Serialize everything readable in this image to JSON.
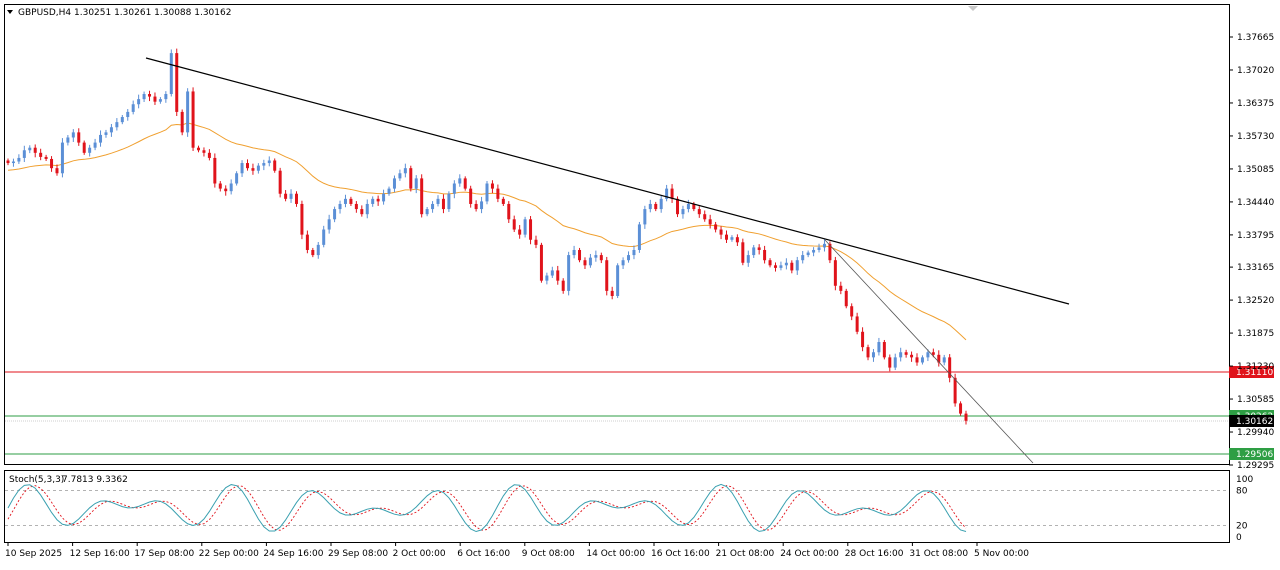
{
  "header": {
    "symbol": "GBPUSD,H4",
    "ohlc": "1.30251 1.30261 1.30088 1.30162"
  },
  "stoch_header": {
    "label": "Stoch(5,3,3)",
    "values": "7.7813 9.3362"
  },
  "colors": {
    "bull": "#5b8fd6",
    "bear": "#e0131b",
    "ma": "#f0a030",
    "trendline": "#000000",
    "stoch_main": "#3aa0b0",
    "stoch_signal": "#e0131b",
    "level_red": "#e0131b",
    "level_green": "#2e9e44"
  },
  "chart_data": [
    {
      "type": "candlestick",
      "symbol": "GBPUSD",
      "timeframe": "H4",
      "ylim": [
        1.2926,
        1.38
      ],
      "y_ticks": [
        "1.37665",
        "1.37020",
        "1.36375",
        "1.35730",
        "1.35085",
        "1.34440",
        "1.33795",
        "1.33165",
        "1.32520",
        "1.31875",
        "1.31230",
        "1.30585",
        "1.29940",
        "1.29295"
      ],
      "x_labels": [
        "10 Sep 2025",
        "12 Sep 16:00",
        "17 Sep 08:00",
        "22 Sep 00:00",
        "24 Sep 16:00",
        "29 Sep 08:00",
        "2 Oct 00:00",
        "6 Oct 16:00",
        "9 Oct 08:00",
        "14 Oct 00:00",
        "16 Oct 16:00",
        "21 Oct 08:00",
        "24 Oct 00:00",
        "28 Oct 16:00",
        "31 Oct 08:00",
        "5 Nov 00:00"
      ],
      "closes": [
        1.352,
        1.3523,
        1.353,
        1.3545,
        1.355,
        1.354,
        1.3532,
        1.3528,
        1.351,
        1.35,
        1.356,
        1.357,
        1.358,
        1.356,
        1.354,
        1.355,
        1.356,
        1.3575,
        1.358,
        1.359,
        1.36,
        1.361,
        1.362,
        1.3635,
        1.3645,
        1.3655,
        1.365,
        1.364,
        1.3645,
        1.3655,
        1.3735,
        1.362,
        1.358,
        1.366,
        1.355,
        1.3545,
        1.354,
        1.353,
        1.348,
        1.347,
        1.3465,
        1.348,
        1.35,
        1.352,
        1.351,
        1.3505,
        1.3515,
        1.352,
        1.3525,
        1.3505,
        1.346,
        1.345,
        1.346,
        1.344,
        1.338,
        1.335,
        1.334,
        1.336,
        1.339,
        1.341,
        1.343,
        1.344,
        1.345,
        1.344,
        1.343,
        1.342,
        1.344,
        1.345,
        1.3445,
        1.346,
        1.347,
        1.349,
        1.35,
        1.351,
        1.347,
        1.349,
        1.342,
        1.343,
        1.344,
        1.345,
        1.343,
        1.346,
        1.348,
        1.349,
        1.347,
        1.344,
        1.343,
        1.3445,
        1.348,
        1.347,
        1.345,
        1.344,
        1.341,
        1.339,
        1.338,
        1.341,
        1.337,
        1.336,
        1.329,
        1.33,
        1.331,
        1.329,
        1.327,
        1.334,
        1.335,
        1.333,
        1.332,
        1.3335,
        1.334,
        1.333,
        1.327,
        1.326,
        1.332,
        1.333,
        1.334,
        1.335,
        1.34,
        1.343,
        1.344,
        1.343,
        1.345,
        1.347,
        1.345,
        1.342,
        1.343,
        1.344,
        1.343,
        1.342,
        1.341,
        1.34,
        1.339,
        1.338,
        1.337,
        1.3375,
        1.3365,
        1.3325,
        1.334,
        1.3355,
        1.335,
        1.333,
        1.332,
        1.3315,
        1.332,
        1.3325,
        1.331,
        1.333,
        1.334,
        1.3345,
        1.335,
        1.3355,
        1.3362,
        1.333,
        1.328,
        1.327,
        1.324,
        1.322,
        1.319,
        1.316,
        1.314,
        1.315,
        1.317,
        1.314,
        1.312,
        1.314,
        1.315,
        1.3145,
        1.314,
        1.313,
        1.314,
        1.315,
        1.3145,
        1.313,
        1.314,
        1.31,
        1.305,
        1.303,
        1.3016
      ],
      "moving_average": {
        "period_note": "",
        "color": "#f0a030"
      },
      "trendlines": [
        {
          "from": [
            "12 Sep 16:00+2",
            1.373
          ],
          "to": [
            "5 Nov 00:00+",
            1.323
          ]
        },
        {
          "from": [
            "24 Oct 00:00+",
            1.3375
          ],
          "to": [
            "5 Nov 00:00+",
            1.2985
          ]
        }
      ],
      "price_levels": [
        {
          "value": "1.31110",
          "color": "#e0131b"
        },
        {
          "value": "1.30262",
          "color": "#2e9e44"
        },
        {
          "value": "1.30162",
          "color": "#000000"
        },
        {
          "value": "1.29506",
          "color": "#2e9e44"
        }
      ]
    },
    {
      "type": "line",
      "title": "Stoch(5,3,3)",
      "ylim": [
        0,
        100
      ],
      "y_ticks": [
        "100",
        "80",
        "20",
        "0"
      ],
      "levels": [
        80,
        20
      ],
      "series": [
        {
          "name": "main",
          "last": 7.7813
        },
        {
          "name": "signal",
          "last": 9.3362
        }
      ]
    }
  ]
}
